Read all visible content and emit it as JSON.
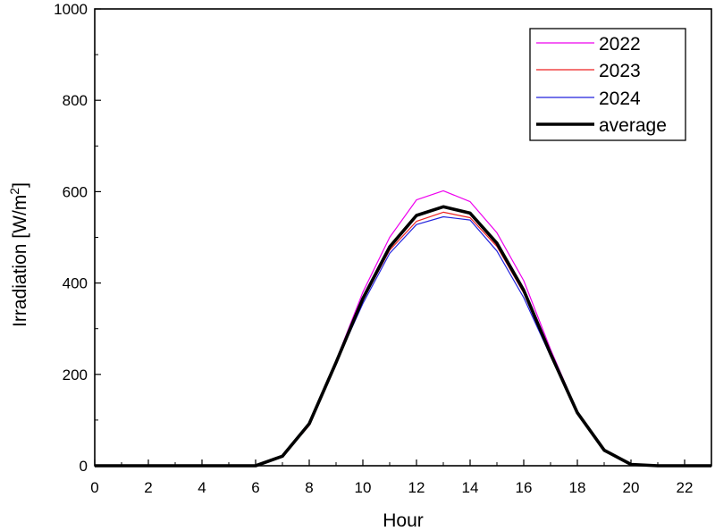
{
  "chart_data": {
    "type": "line",
    "xlabel": "Hour",
    "ylabel_main": "Irradiation [W/m",
    "ylabel_sup": "2",
    "ylabel_end": "]",
    "xlim": [
      0,
      23
    ],
    "ylim": [
      0,
      1000
    ],
    "x_ticks": [
      0,
      2,
      4,
      6,
      8,
      10,
      12,
      14,
      16,
      18,
      20,
      22
    ],
    "x_tick_labels": [
      "0",
      "2",
      "4",
      "6",
      "8",
      "10",
      "12",
      "14",
      "16",
      "18",
      "20",
      "22"
    ],
    "y_ticks": [
      0,
      200,
      400,
      600,
      800,
      1000
    ],
    "y_tick_labels": [
      "0",
      "200",
      "400",
      "600",
      "800",
      "1000"
    ],
    "grid": false,
    "legend_position": "top-right",
    "x": [
      0,
      1,
      2,
      3,
      4,
      5,
      6,
      7,
      8,
      9,
      10,
      11,
      12,
      13,
      14,
      15,
      16,
      17,
      18,
      19,
      20,
      21,
      22,
      23
    ],
    "series": [
      {
        "name": "2022",
        "color": "#ee00ee",
        "width": "thin",
        "values": [
          0,
          0,
          0,
          0,
          0,
          0,
          0,
          22,
          92,
          230,
          380,
          500,
          582,
          602,
          578,
          510,
          405,
          255,
          118,
          35,
          3,
          0,
          0,
          0
        ]
      },
      {
        "name": "2023",
        "color": "#ee2222",
        "width": "thin",
        "values": [
          0,
          0,
          0,
          0,
          0,
          0,
          0,
          20,
          88,
          222,
          362,
          472,
          535,
          555,
          543,
          480,
          378,
          240,
          115,
          33,
          3,
          0,
          0,
          0
        ]
      },
      {
        "name": "2024",
        "color": "#2222dd",
        "width": "thin",
        "values": [
          0,
          0,
          0,
          0,
          0,
          0,
          0,
          20,
          95,
          225,
          355,
          465,
          528,
          545,
          538,
          470,
          368,
          240,
          115,
          33,
          2,
          0,
          0,
          0
        ]
      },
      {
        "name": "average",
        "color": "#000000",
        "width": "thick",
        "values": [
          0,
          0,
          0,
          0,
          0,
          0,
          0,
          21,
          92,
          226,
          366,
          479,
          548,
          567,
          553,
          487,
          384,
          245,
          116,
          34,
          3,
          0,
          0,
          0
        ]
      }
    ]
  }
}
